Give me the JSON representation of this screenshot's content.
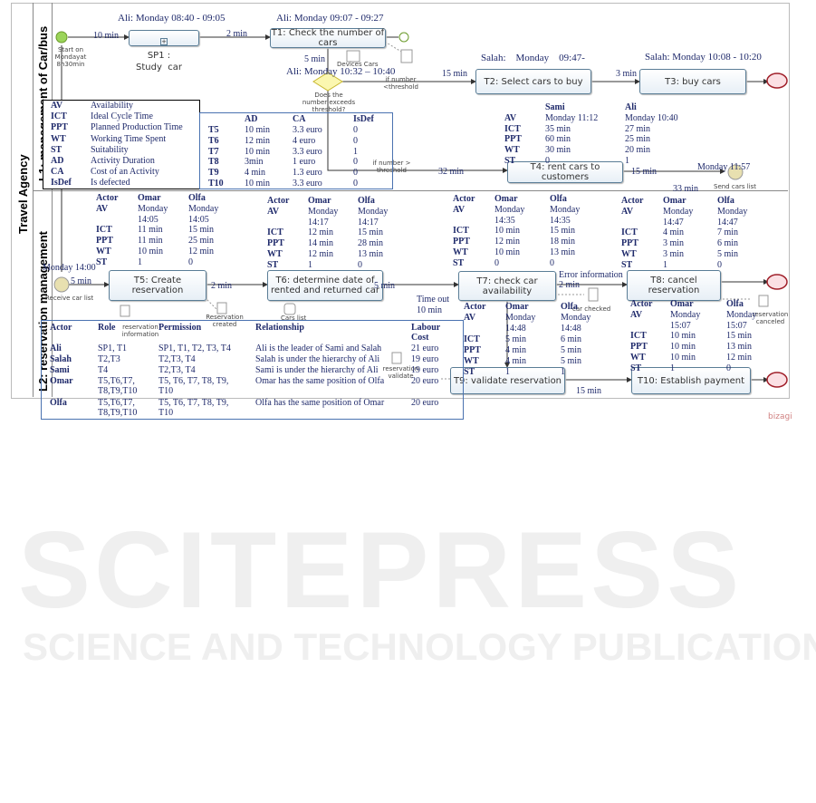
{
  "pool": {
    "label": "Travel Agency",
    "lane1": "L1: management of Car/bus",
    "lane2": "L2: reservation management"
  },
  "start": {
    "label": "Start on Mondayat 8h30min"
  },
  "sp1": {
    "label": "SP1 :\nStudy  car",
    "time": "Ali: Monday 08:40 - 09:05"
  },
  "t1": {
    "label": "T1: Check the number of  cars",
    "time": "Ali: Monday 09:07 - 09:27"
  },
  "t2": {
    "label": "T2: Select cars to buy",
    "time": "Salah:    Monday    09:47-"
  },
  "t3": {
    "label": "T3:  buy cars",
    "time": "Salah: Monday 10:08 - 10:20"
  },
  "t4": {
    "label": "T4: rent cars to customers"
  },
  "t5": {
    "label": "T5: Create reservation"
  },
  "t6": {
    "label": "T6: determine date of rented and returned car"
  },
  "t7": {
    "label": "T7: check car availability"
  },
  "t8": {
    "label": "T8: cancel reservation"
  },
  "t9": {
    "label": "T9: validate reservation"
  },
  "t10": {
    "label": "T10: Establish payment"
  },
  "gateway": {
    "label": "Does the number exceeds threshold?",
    "time": "Ali: Monday 10:32 – 10:40",
    "lt": "if number <threshold",
    "gt": "if number > threshold"
  },
  "durations": {
    "d1": "10 min",
    "d2": "2 min",
    "d3": "5 min",
    "d4": "15 min",
    "d5": "3 min",
    "d6": "32 min",
    "d7": "15 min",
    "d8": "33 min",
    "d9": "5 min",
    "d10": "2 min",
    "d11": "5 min",
    "d12": "Time out",
    "d13": "10 min",
    "d14": "Error information",
    "d15": "2 min",
    "d16": "15 min"
  },
  "events": {
    "send": "Send cars list",
    "send_time": "Monday 11:57",
    "receive": "Receive car list",
    "receive_time": "Monday 14:00"
  },
  "artifacts": {
    "devices": "Devices Cars",
    "res_info": "reservation information",
    "res_created": "Reservation created",
    "cars_list": "Cars list",
    "car_checked": "car checked",
    "res_validate": "reservation validate",
    "res_canceled": "reservation canceled"
  },
  "legend": [
    [
      "AV",
      "Availability"
    ],
    [
      "ICT",
      "Ideal Cycle Time"
    ],
    [
      "PPT",
      "Planned Production Time"
    ],
    [
      "WT",
      "Working Time Spent"
    ],
    [
      "ST",
      "Suitability"
    ],
    [
      "AD",
      "Activity Duration"
    ],
    [
      "CA",
      "Cost of an Activity"
    ],
    [
      "IsDef",
      "Is defected"
    ]
  ],
  "task_table": {
    "headers": [
      "",
      "AD",
      "CA",
      "IsDef"
    ],
    "rows": [
      [
        "T5",
        "10 min",
        "3.3 euro",
        "0"
      ],
      [
        "T6",
        "12 min",
        "4 euro",
        "0"
      ],
      [
        "T7",
        "10 min",
        "3.3 euro",
        "1"
      ],
      [
        "T8",
        "3min",
        "1 euro",
        "0"
      ],
      [
        "T9",
        "4 min",
        "1.3 euro",
        "0"
      ],
      [
        "T10",
        "10 min",
        "3.3 euro",
        "0"
      ]
    ]
  },
  "actor_tables": [
    {
      "id": "t2t4",
      "rows": [
        [
          "",
          "Sami",
          "Ali"
        ],
        [
          "AV",
          "Monday 11:12",
          "Monday 10:40"
        ],
        [
          "ICT",
          "35 min",
          "27 min"
        ],
        [
          "PPT",
          "60  min",
          "25 min"
        ],
        [
          "WT",
          "30 min",
          "20 min"
        ],
        [
          "ST",
          "0",
          "1"
        ]
      ]
    },
    {
      "id": "t5",
      "rows": [
        [
          "Actor",
          "Omar",
          "Olfa"
        ],
        [
          "AV",
          "Monday",
          "Monday"
        ],
        [
          "",
          "14:05",
          "14:05"
        ],
        [
          "ICT",
          "11 min",
          "15 min"
        ],
        [
          "PPT",
          "11  min",
          "25 min"
        ],
        [
          "WT",
          "10 min",
          "12 min"
        ],
        [
          "ST",
          "1",
          "0"
        ]
      ]
    },
    {
      "id": "t6",
      "rows": [
        [
          "Actor",
          "Omar",
          "Olfa"
        ],
        [
          "AV",
          "Monday",
          "Monday"
        ],
        [
          "",
          "14:17",
          "14:17"
        ],
        [
          "ICT",
          "12 min",
          "15 min"
        ],
        [
          "PPT",
          "14 min",
          "28 min"
        ],
        [
          "WT",
          "12 min",
          "13 min"
        ],
        [
          "ST",
          "1",
          "0"
        ]
      ]
    },
    {
      "id": "t7",
      "rows": [
        [
          "Actor",
          "Omar",
          "Olfa"
        ],
        [
          "AV",
          "Monday",
          "Monday"
        ],
        [
          "",
          "14:35",
          "14:35"
        ],
        [
          "ICT",
          "10 min",
          "15 min"
        ],
        [
          "PPT",
          "12  min",
          "18 min"
        ],
        [
          "WT",
          "10 min",
          "13 min"
        ],
        [
          "ST",
          "0",
          "0"
        ]
      ]
    },
    {
      "id": "t8",
      "rows": [
        [
          "Actor",
          "Omar",
          "Olfa"
        ],
        [
          "AV",
          "Monday",
          "Monday"
        ],
        [
          "",
          "14:47",
          "14:47"
        ],
        [
          "ICT",
          "4 min",
          "7 min"
        ],
        [
          "PPT",
          "3  min",
          "6 min"
        ],
        [
          "WT",
          "3 min",
          "5 min"
        ],
        [
          "ST",
          "1",
          "0"
        ]
      ]
    },
    {
      "id": "t9",
      "rows": [
        [
          "Actor",
          "Omar",
          "Olfa"
        ],
        [
          "AV",
          "Monday",
          "Monday"
        ],
        [
          "",
          "14:48",
          "14:48"
        ],
        [
          "ICT",
          "5 min",
          "6 min"
        ],
        [
          "PPT",
          "4  min",
          "5 min"
        ],
        [
          "WT",
          "4 min",
          "5 min"
        ],
        [
          "ST",
          "1",
          "1"
        ]
      ]
    },
    {
      "id": "t10",
      "rows": [
        [
          "Actor",
          "Omar",
          "Olfa"
        ],
        [
          "AV",
          "Monday",
          "Monday"
        ],
        [
          "",
          "15:07",
          "15:07"
        ],
        [
          "ICT",
          "10 min",
          "15 min"
        ],
        [
          "PPT",
          "10  min",
          "13 min"
        ],
        [
          "WT",
          "10  min",
          "12 min"
        ],
        [
          "ST",
          "1",
          "0"
        ]
      ]
    }
  ],
  "role_table": {
    "headers": [
      "Actor",
      "Role",
      "Permission",
      "Relationship",
      "Labour Cost"
    ],
    "rows": [
      [
        "Ali",
        "SP1, T1",
        "SP1, T1, T2, T3, T4",
        "Ali is the leader of Sami and Salah",
        "21 euro"
      ],
      [
        "Salah",
        "T2,T3",
        "T2,T3, T4",
        "Salah is under the hierarchy of Ali",
        "19 euro"
      ],
      [
        "Sami",
        "T4",
        "T2,T3, T4",
        "Sami is under the hierarchy of Ali",
        "19 euro"
      ],
      [
        "Omar",
        "T5,T6,T7,\nT8,T9,T10",
        "T5, T6, T7, T8, T9,\nT10",
        "Omar has the same position of Olfa",
        "20 euro"
      ],
      [
        "Olfa",
        "T5,T6,T7,\nT8,T9,T10",
        "T5, T6, T7, T8, T9,\nT10",
        "Olfa has the same position of Omar",
        "20 euro"
      ]
    ]
  },
  "logos": {
    "bizagi": "bizagi",
    "watermark1": "SCITEPRESS",
    "watermark2": "SCIENCE AND TECHNOLOGY PUBLICATIONS"
  },
  "colors": {
    "task_border": "#5a7d96",
    "table_border": "#4a72b0",
    "start": "#8fd14f",
    "end": "#e06070"
  }
}
